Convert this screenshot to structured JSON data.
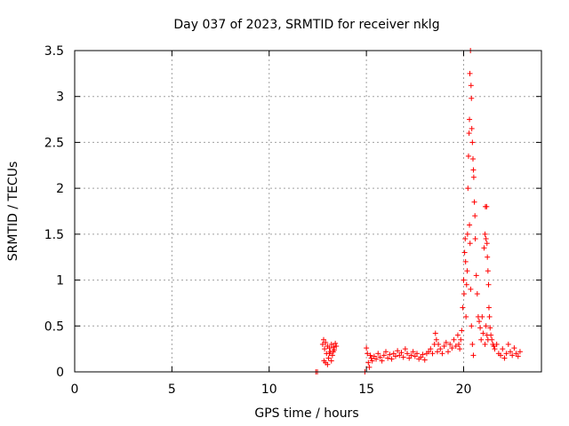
{
  "chart_data": {
    "type": "scatter",
    "title": "Day 037 of 2023, SRMTID for receiver nklg",
    "xlabel": "GPS time / hours",
    "ylabel": "SRMTID / TECUs",
    "xlim": [
      0,
      24
    ],
    "ylim": [
      0,
      3.5
    ],
    "x_ticks": [
      0,
      5,
      10,
      15,
      20
    ],
    "x_tick_labels": [
      "0",
      "5",
      "10",
      "15",
      "20"
    ],
    "y_ticks": [
      0,
      0.5,
      1,
      1.5,
      2,
      2.5,
      3,
      3.5
    ],
    "y_tick_labels": [
      "0",
      "0.5",
      "1",
      "1.5",
      "2",
      "2.5",
      "3",
      "3.5"
    ],
    "grid": true,
    "marker": "+",
    "color": "#ff0000",
    "series": [
      {
        "name": "nklg",
        "x": [
          12.4,
          12.48,
          12.75,
          12.8,
          12.85,
          12.9,
          12.95,
          13.0,
          13.05,
          13.1,
          13.15,
          13.2,
          13.25,
          13.3,
          13.35,
          13.4,
          13.45,
          12.82,
          12.9,
          13.0,
          13.1,
          13.2,
          13.3,
          14.92,
          15.0,
          15.05,
          15.1,
          15.15,
          15.2,
          15.25,
          15.3,
          15.4,
          15.5,
          15.6,
          15.7,
          15.8,
          15.9,
          16.0,
          16.1,
          16.2,
          16.3,
          16.4,
          16.5,
          16.6,
          16.7,
          16.8,
          16.9,
          17.0,
          17.1,
          17.2,
          17.3,
          17.4,
          17.5,
          17.6,
          17.7,
          17.8,
          17.9,
          18.0,
          18.1,
          18.2,
          18.3,
          18.4,
          18.5,
          18.55,
          18.6,
          18.65,
          18.7,
          18.8,
          18.9,
          19.0,
          19.1,
          19.2,
          19.3,
          19.4,
          19.5,
          19.6,
          19.7,
          19.75,
          19.8,
          19.85,
          19.9,
          19.95,
          20.0,
          20.02,
          20.05,
          20.08,
          20.1,
          20.12,
          20.15,
          20.18,
          20.2,
          20.22,
          20.25,
          20.28,
          20.3,
          20.32,
          20.35,
          20.38,
          20.4,
          20.42,
          20.45,
          20.48,
          20.5,
          20.52,
          20.55,
          20.58,
          20.3,
          20.33,
          20.36,
          20.4,
          20.45,
          20.5,
          20.6,
          20.65,
          20.7,
          20.75,
          20.8,
          20.85,
          20.9,
          20.95,
          21.0,
          21.05,
          21.1,
          21.12,
          21.15,
          21.18,
          21.2,
          21.22,
          21.25,
          21.28,
          21.3,
          21.33,
          21.36,
          21.4,
          21.45,
          21.5,
          21.1,
          21.15,
          21.2,
          21.25,
          21.55,
          21.6,
          21.7,
          21.8,
          21.9,
          22.0,
          22.1,
          22.2,
          22.3,
          22.4,
          22.5,
          22.6,
          22.7,
          22.8,
          22.9
        ],
        "y": [
          0.0,
          0.0,
          0.3,
          0.35,
          0.25,
          0.32,
          0.2,
          0.28,
          0.15,
          0.26,
          0.22,
          0.3,
          0.18,
          0.27,
          0.24,
          0.31,
          0.28,
          0.12,
          0.1,
          0.08,
          0.2,
          0.12,
          0.22,
          0.0,
          0.26,
          0.2,
          0.1,
          0.05,
          0.18,
          0.15,
          0.12,
          0.17,
          0.14,
          0.2,
          0.16,
          0.12,
          0.18,
          0.22,
          0.15,
          0.19,
          0.14,
          0.2,
          0.17,
          0.23,
          0.18,
          0.21,
          0.16,
          0.25,
          0.2,
          0.15,
          0.18,
          0.22,
          0.17,
          0.2,
          0.14,
          0.16,
          0.19,
          0.13,
          0.2,
          0.22,
          0.25,
          0.2,
          0.3,
          0.42,
          0.35,
          0.22,
          0.3,
          0.25,
          0.2,
          0.28,
          0.32,
          0.22,
          0.3,
          0.26,
          0.35,
          0.28,
          0.4,
          0.3,
          0.25,
          0.35,
          0.45,
          0.7,
          1.0,
          0.85,
          1.3,
          1.45,
          1.2,
          0.6,
          0.95,
          1.1,
          1.5,
          2.0,
          2.35,
          2.6,
          2.75,
          3.25,
          3.5,
          3.12,
          2.98,
          2.65,
          2.5,
          2.32,
          2.2,
          2.12,
          1.85,
          1.7,
          1.6,
          1.4,
          0.9,
          0.5,
          0.3,
          0.18,
          1.45,
          1.05,
          0.85,
          0.6,
          0.55,
          0.48,
          0.35,
          0.6,
          0.42,
          1.35,
          1.5,
          1.8,
          1.45,
          1.8,
          1.4,
          1.25,
          1.1,
          0.95,
          0.7,
          0.6,
          0.48,
          0.4,
          0.35,
          0.3,
          0.3,
          0.5,
          0.4,
          0.35,
          0.28,
          0.25,
          0.3,
          0.2,
          0.18,
          0.25,
          0.15,
          0.2,
          0.3,
          0.22,
          0.18,
          0.26,
          0.2,
          0.17,
          0.22
        ]
      }
    ]
  }
}
